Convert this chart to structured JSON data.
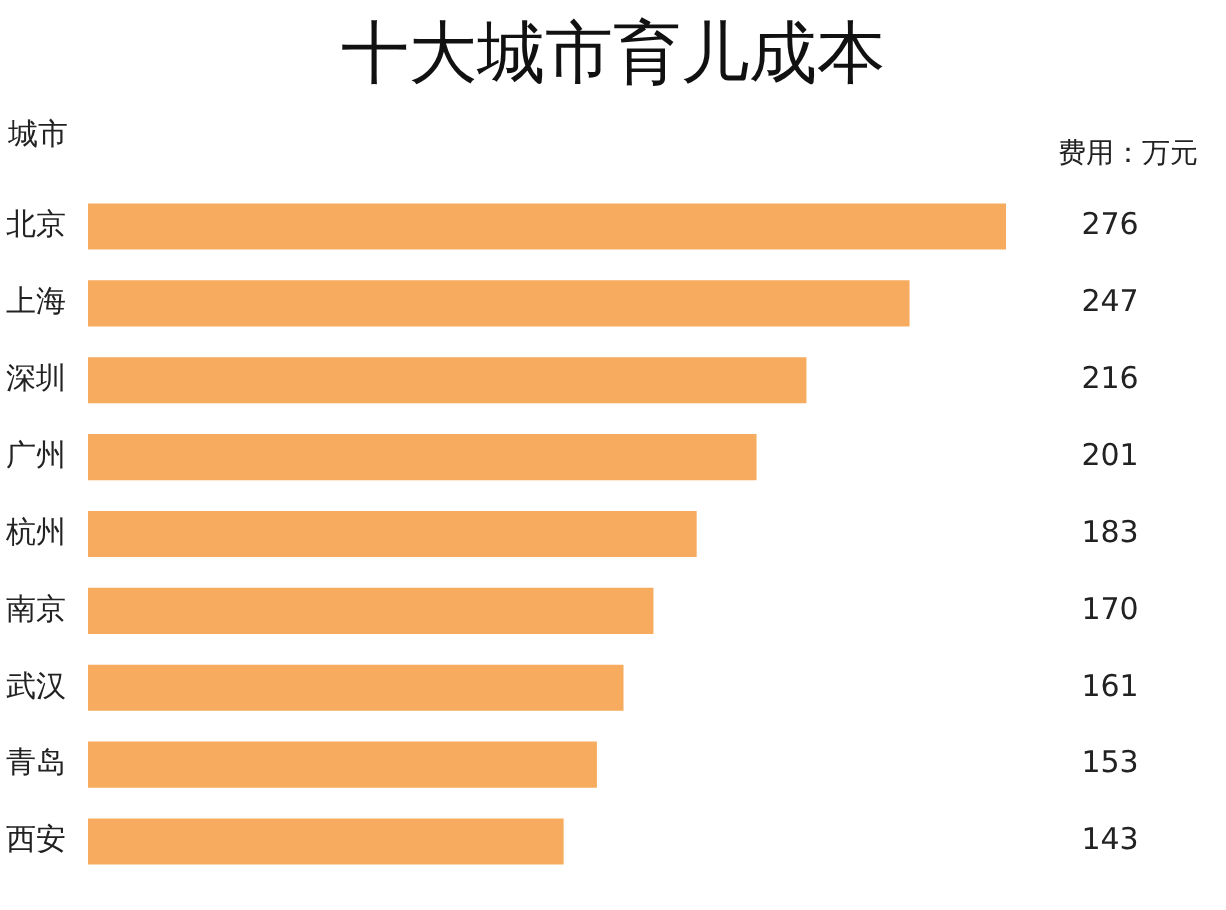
{
  "chart_data": {
    "type": "bar",
    "orientation": "horizontal",
    "title": "十大城市育儿成本",
    "ylabel": "城市",
    "annotations": [
      "费用：万元"
    ],
    "categories": [
      "北京",
      "上海",
      "深圳",
      "广州",
      "杭州",
      "南京",
      "武汉",
      "青岛",
      "西安"
    ],
    "values": [
      276,
      247,
      216,
      201,
      183,
      170,
      161,
      153,
      143
    ],
    "color": "#f7ab5e",
    "data_labels": true
  }
}
